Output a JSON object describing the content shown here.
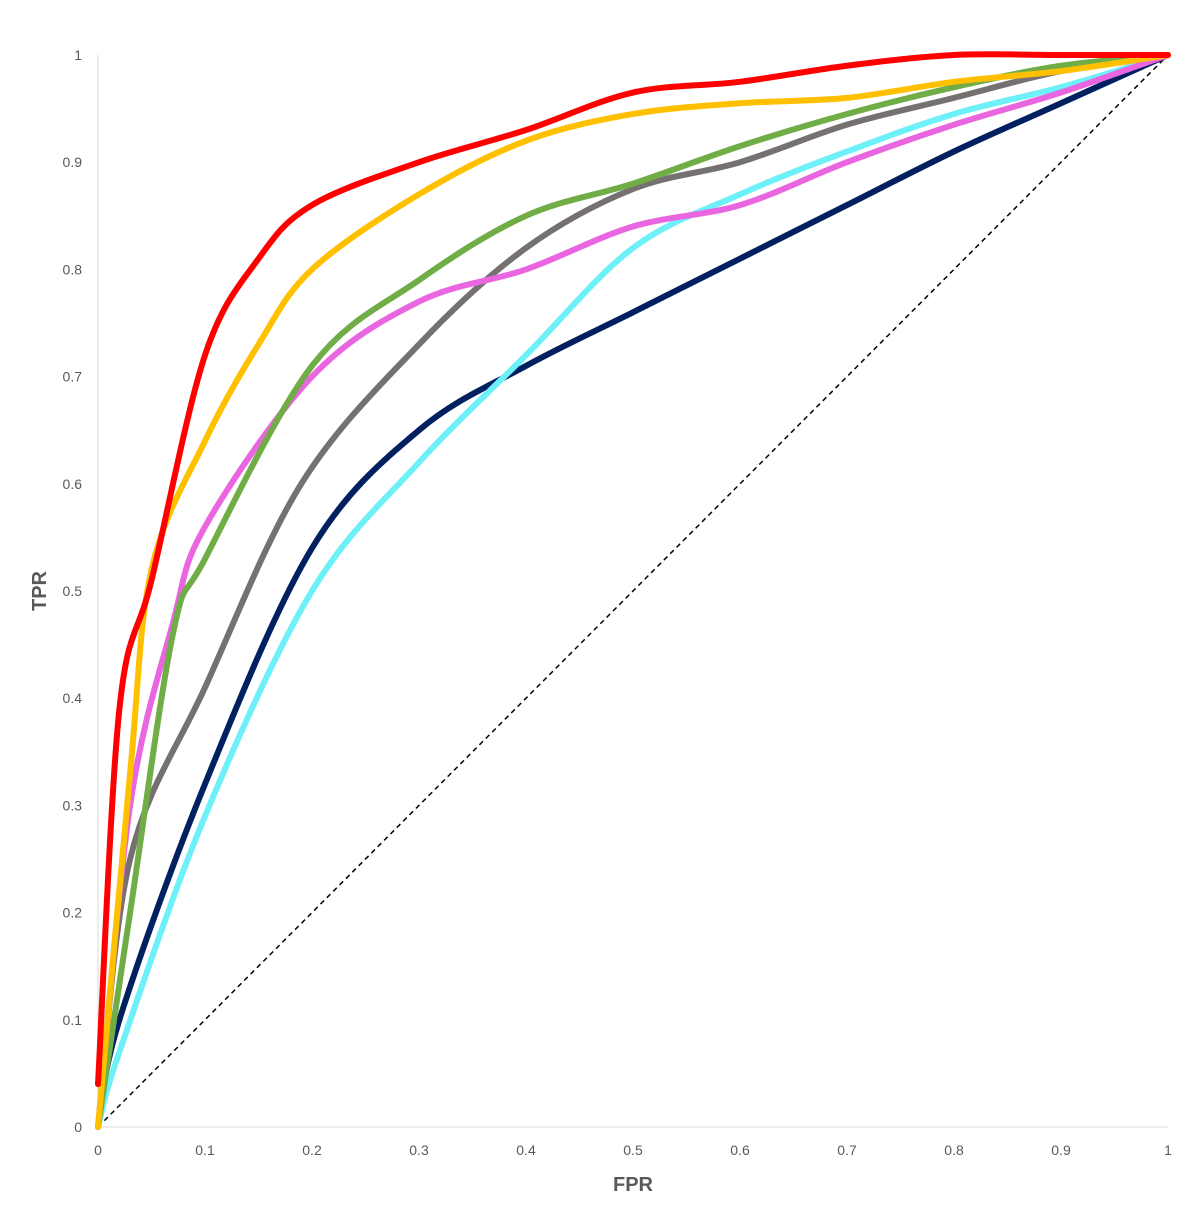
{
  "chart_data": {
    "type": "line",
    "title": "",
    "xlabel": "FPR",
    "ylabel": "TPR",
    "xlim": [
      0,
      1
    ],
    "ylim": [
      0,
      1
    ],
    "x_ticks": [
      "0",
      "0.1",
      "0.2",
      "0.3",
      "0.4",
      "0.5",
      "0.6",
      "0.7",
      "0.8",
      "0.9",
      "1"
    ],
    "y_ticks": [
      "0",
      "0.1",
      "0.2",
      "0.3",
      "0.4",
      "0.5",
      "0.6",
      "0.7",
      "0.8",
      "0.9",
      "1"
    ],
    "grid": false,
    "legend": "none",
    "reference_line": {
      "points": [
        [
          0,
          0
        ],
        [
          1,
          1
        ]
      ],
      "style": "dashed",
      "color": "#000000"
    },
    "series": [
      {
        "color": "#002060",
        "points": [
          [
            0,
            0
          ],
          [
            0.02,
            0.1
          ],
          [
            0.1,
            0.32
          ],
          [
            0.2,
            0.54
          ],
          [
            0.3,
            0.65
          ],
          [
            0.4,
            0.71
          ],
          [
            0.5,
            0.76
          ],
          [
            0.6,
            0.81
          ],
          [
            0.7,
            0.86
          ],
          [
            0.8,
            0.91
          ],
          [
            0.9,
            0.955
          ],
          [
            1,
            1
          ]
        ]
      },
      {
        "color": "#6EF0F8",
        "points": [
          [
            0,
            0
          ],
          [
            0.02,
            0.07
          ],
          [
            0.1,
            0.29
          ],
          [
            0.2,
            0.5
          ],
          [
            0.3,
            0.62
          ],
          [
            0.4,
            0.72
          ],
          [
            0.5,
            0.82
          ],
          [
            0.6,
            0.87
          ],
          [
            0.7,
            0.91
          ],
          [
            0.8,
            0.945
          ],
          [
            0.9,
            0.97
          ],
          [
            1,
            1
          ]
        ]
      },
      {
        "color": "#767171",
        "points": [
          [
            0,
            0
          ],
          [
            0.03,
            0.25
          ],
          [
            0.1,
            0.41
          ],
          [
            0.19,
            0.6
          ],
          [
            0.3,
            0.73
          ],
          [
            0.4,
            0.82
          ],
          [
            0.5,
            0.875
          ],
          [
            0.6,
            0.9
          ],
          [
            0.7,
            0.935
          ],
          [
            0.8,
            0.96
          ],
          [
            0.9,
            0.985
          ],
          [
            1,
            1
          ]
        ]
      },
      {
        "color": "#E966E0",
        "points": [
          [
            0,
            0
          ],
          [
            0.03,
            0.3
          ],
          [
            0.07,
            0.47
          ],
          [
            0.1,
            0.56
          ],
          [
            0.2,
            0.7
          ],
          [
            0.3,
            0.77
          ],
          [
            0.4,
            0.8
          ],
          [
            0.5,
            0.84
          ],
          [
            0.6,
            0.86
          ],
          [
            0.7,
            0.9
          ],
          [
            0.8,
            0.935
          ],
          [
            0.9,
            0.965
          ],
          [
            1,
            1
          ]
        ]
      },
      {
        "color": "#70AD47",
        "points": [
          [
            0,
            0
          ],
          [
            0.03,
            0.2
          ],
          [
            0.07,
            0.46
          ],
          [
            0.1,
            0.53
          ],
          [
            0.2,
            0.71
          ],
          [
            0.3,
            0.79
          ],
          [
            0.4,
            0.85
          ],
          [
            0.5,
            0.88
          ],
          [
            0.6,
            0.915
          ],
          [
            0.7,
            0.945
          ],
          [
            0.8,
            0.97
          ],
          [
            0.9,
            0.99
          ],
          [
            1,
            1
          ]
        ]
      },
      {
        "color": "#FFC000",
        "points": [
          [
            0,
            0
          ],
          [
            0.03,
            0.33
          ],
          [
            0.05,
            0.52
          ],
          [
            0.1,
            0.64
          ],
          [
            0.15,
            0.73
          ],
          [
            0.2,
            0.8
          ],
          [
            0.3,
            0.87
          ],
          [
            0.4,
            0.92
          ],
          [
            0.5,
            0.945
          ],
          [
            0.6,
            0.955
          ],
          [
            0.7,
            0.96
          ],
          [
            0.8,
            0.975
          ],
          [
            0.9,
            0.985
          ],
          [
            1,
            1
          ]
        ]
      },
      {
        "color": "#FF0000",
        "points": [
          [
            0,
            0.04
          ],
          [
            0.02,
            0.39
          ],
          [
            0.05,
            0.51
          ],
          [
            0.1,
            0.72
          ],
          [
            0.15,
            0.81
          ],
          [
            0.2,
            0.86
          ],
          [
            0.3,
            0.9
          ],
          [
            0.4,
            0.93
          ],
          [
            0.5,
            0.965
          ],
          [
            0.6,
            0.975
          ],
          [
            0.7,
            0.99
          ],
          [
            0.8,
            1
          ],
          [
            0.9,
            1
          ],
          [
            1,
            1
          ]
        ]
      }
    ]
  }
}
